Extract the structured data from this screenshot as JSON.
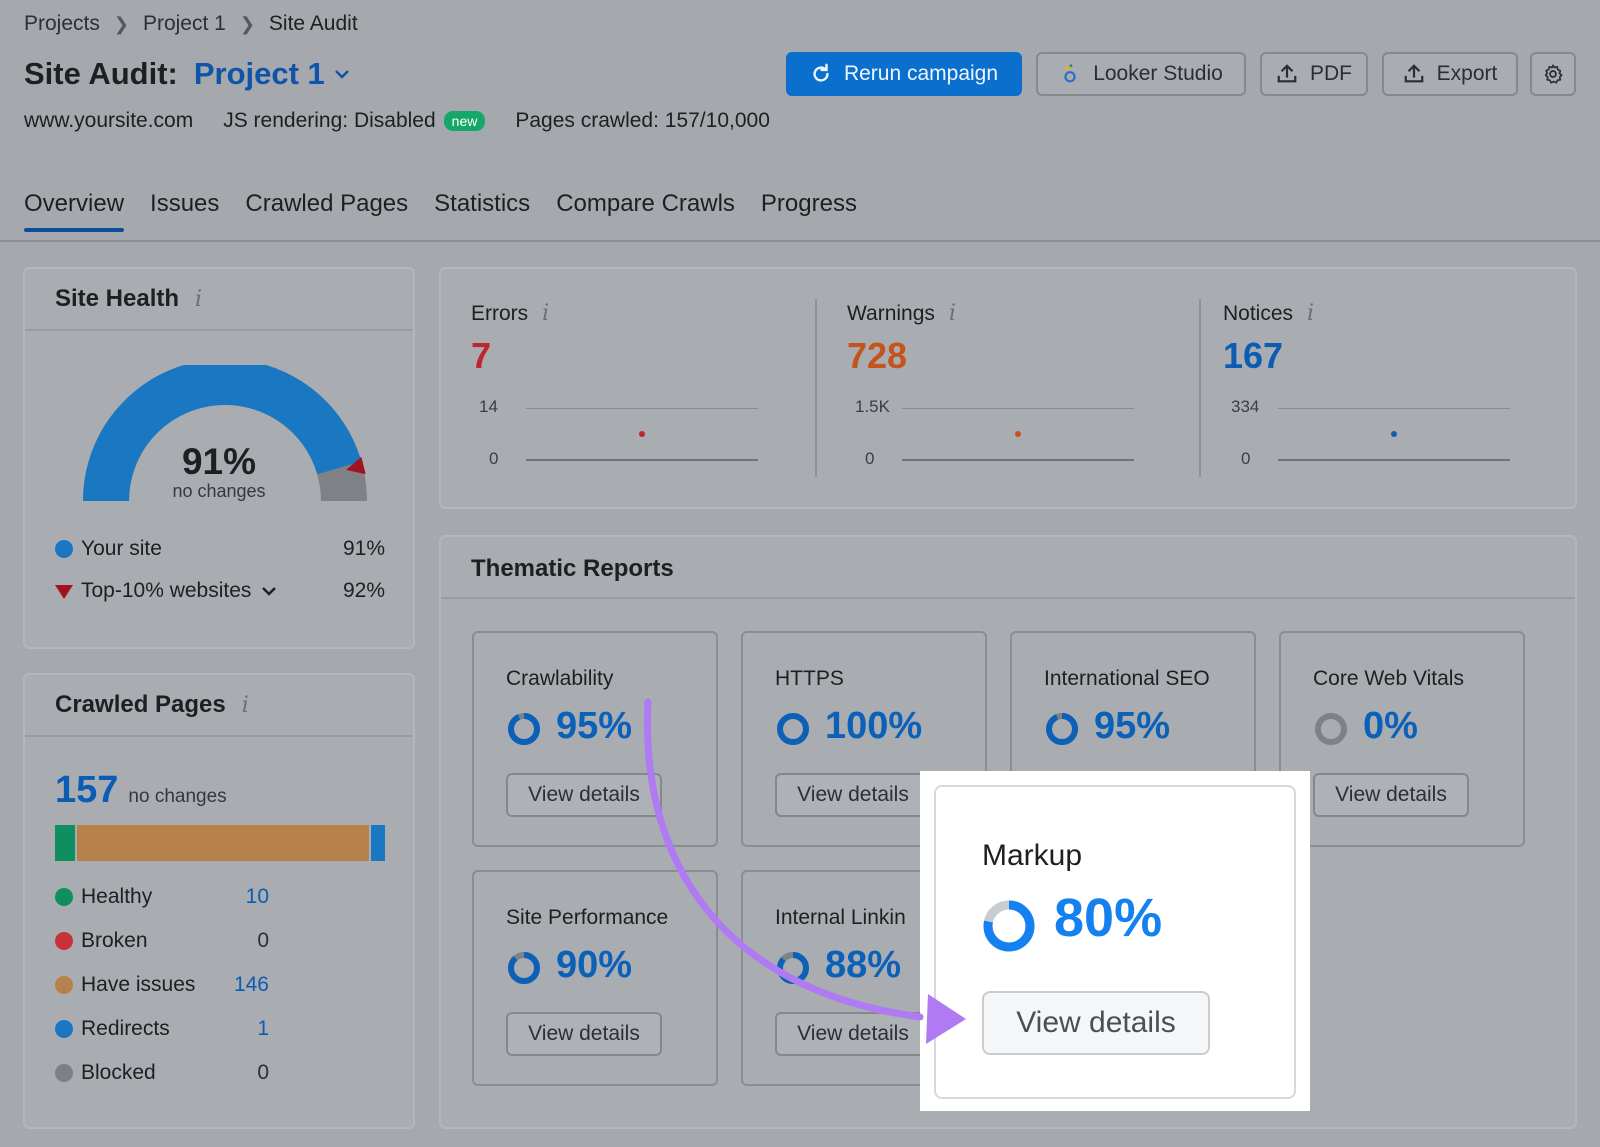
{
  "breadcrumb": [
    "Projects",
    "Project 1",
    "Site Audit"
  ],
  "header": {
    "title": "Site Audit:",
    "project": "Project 1",
    "domain": "www.yoursite.com",
    "js_rendering": "JS rendering: Disabled",
    "new_badge": "new",
    "pages_crawled": "Pages crawled: 157/10,000"
  },
  "toolbar": {
    "rerun": "Rerun campaign",
    "looker": "Looker Studio",
    "pdf": "PDF",
    "export": "Export"
  },
  "tabs": [
    "Overview",
    "Issues",
    "Crawled Pages",
    "Statistics",
    "Compare Crawls",
    "Progress"
  ],
  "site_health": {
    "title": "Site Health",
    "score": "91%",
    "score_value": 91,
    "top10_value": 92,
    "change": "no changes",
    "legend": [
      {
        "label": "Your site",
        "value": "91%"
      },
      {
        "label": "Top-10% websites",
        "value": "92%"
      }
    ]
  },
  "crawled_pages": {
    "title": "Crawled Pages",
    "total": "157",
    "change": "no changes",
    "rows": [
      {
        "label": "Healthy",
        "value": "10",
        "color": "#0f8f5f",
        "count": 10
      },
      {
        "label": "Broken",
        "value": "0",
        "color": "#c8303c",
        "count": 0
      },
      {
        "label": "Have issues",
        "value": "146",
        "color": "#b7814c",
        "count": 146
      },
      {
        "label": "Redirects",
        "value": "1",
        "color": "#1a78c2",
        "count": 1
      },
      {
        "label": "Blocked",
        "value": "0",
        "color": "#7c7f84",
        "count": 0
      }
    ]
  },
  "issues": [
    {
      "label": "Errors",
      "value": "7",
      "axis_max": "14",
      "axis_min": "0",
      "color": "#c0262d"
    },
    {
      "label": "Warnings",
      "value": "728",
      "axis_max": "1.5K",
      "axis_min": "0",
      "color": "#c4531c"
    },
    {
      "label": "Notices",
      "value": "167",
      "axis_max": "334",
      "axis_min": "0",
      "color": "#0b5cb3"
    }
  ],
  "thematic": {
    "title": "Thematic Reports",
    "view_details": "View details",
    "reports": [
      {
        "name": "Crawlability",
        "pct": "95%",
        "value": 95
      },
      {
        "name": "HTTPS",
        "pct": "100%",
        "value": 100
      },
      {
        "name": "International SEO",
        "pct": "95%",
        "value": 95
      },
      {
        "name": "Core Web Vitals",
        "pct": "0%",
        "value": 0
      },
      {
        "name": "Site Performance",
        "pct": "90%",
        "value": 90
      },
      {
        "name": "Internal Linkin",
        "pct": "88%",
        "value": 88
      }
    ],
    "highlight": {
      "name": "Markup",
      "pct": "80%",
      "value": 80
    }
  },
  "colors": {
    "accent": "#0b6fce",
    "annotation_arrow": "#b07af2"
  }
}
